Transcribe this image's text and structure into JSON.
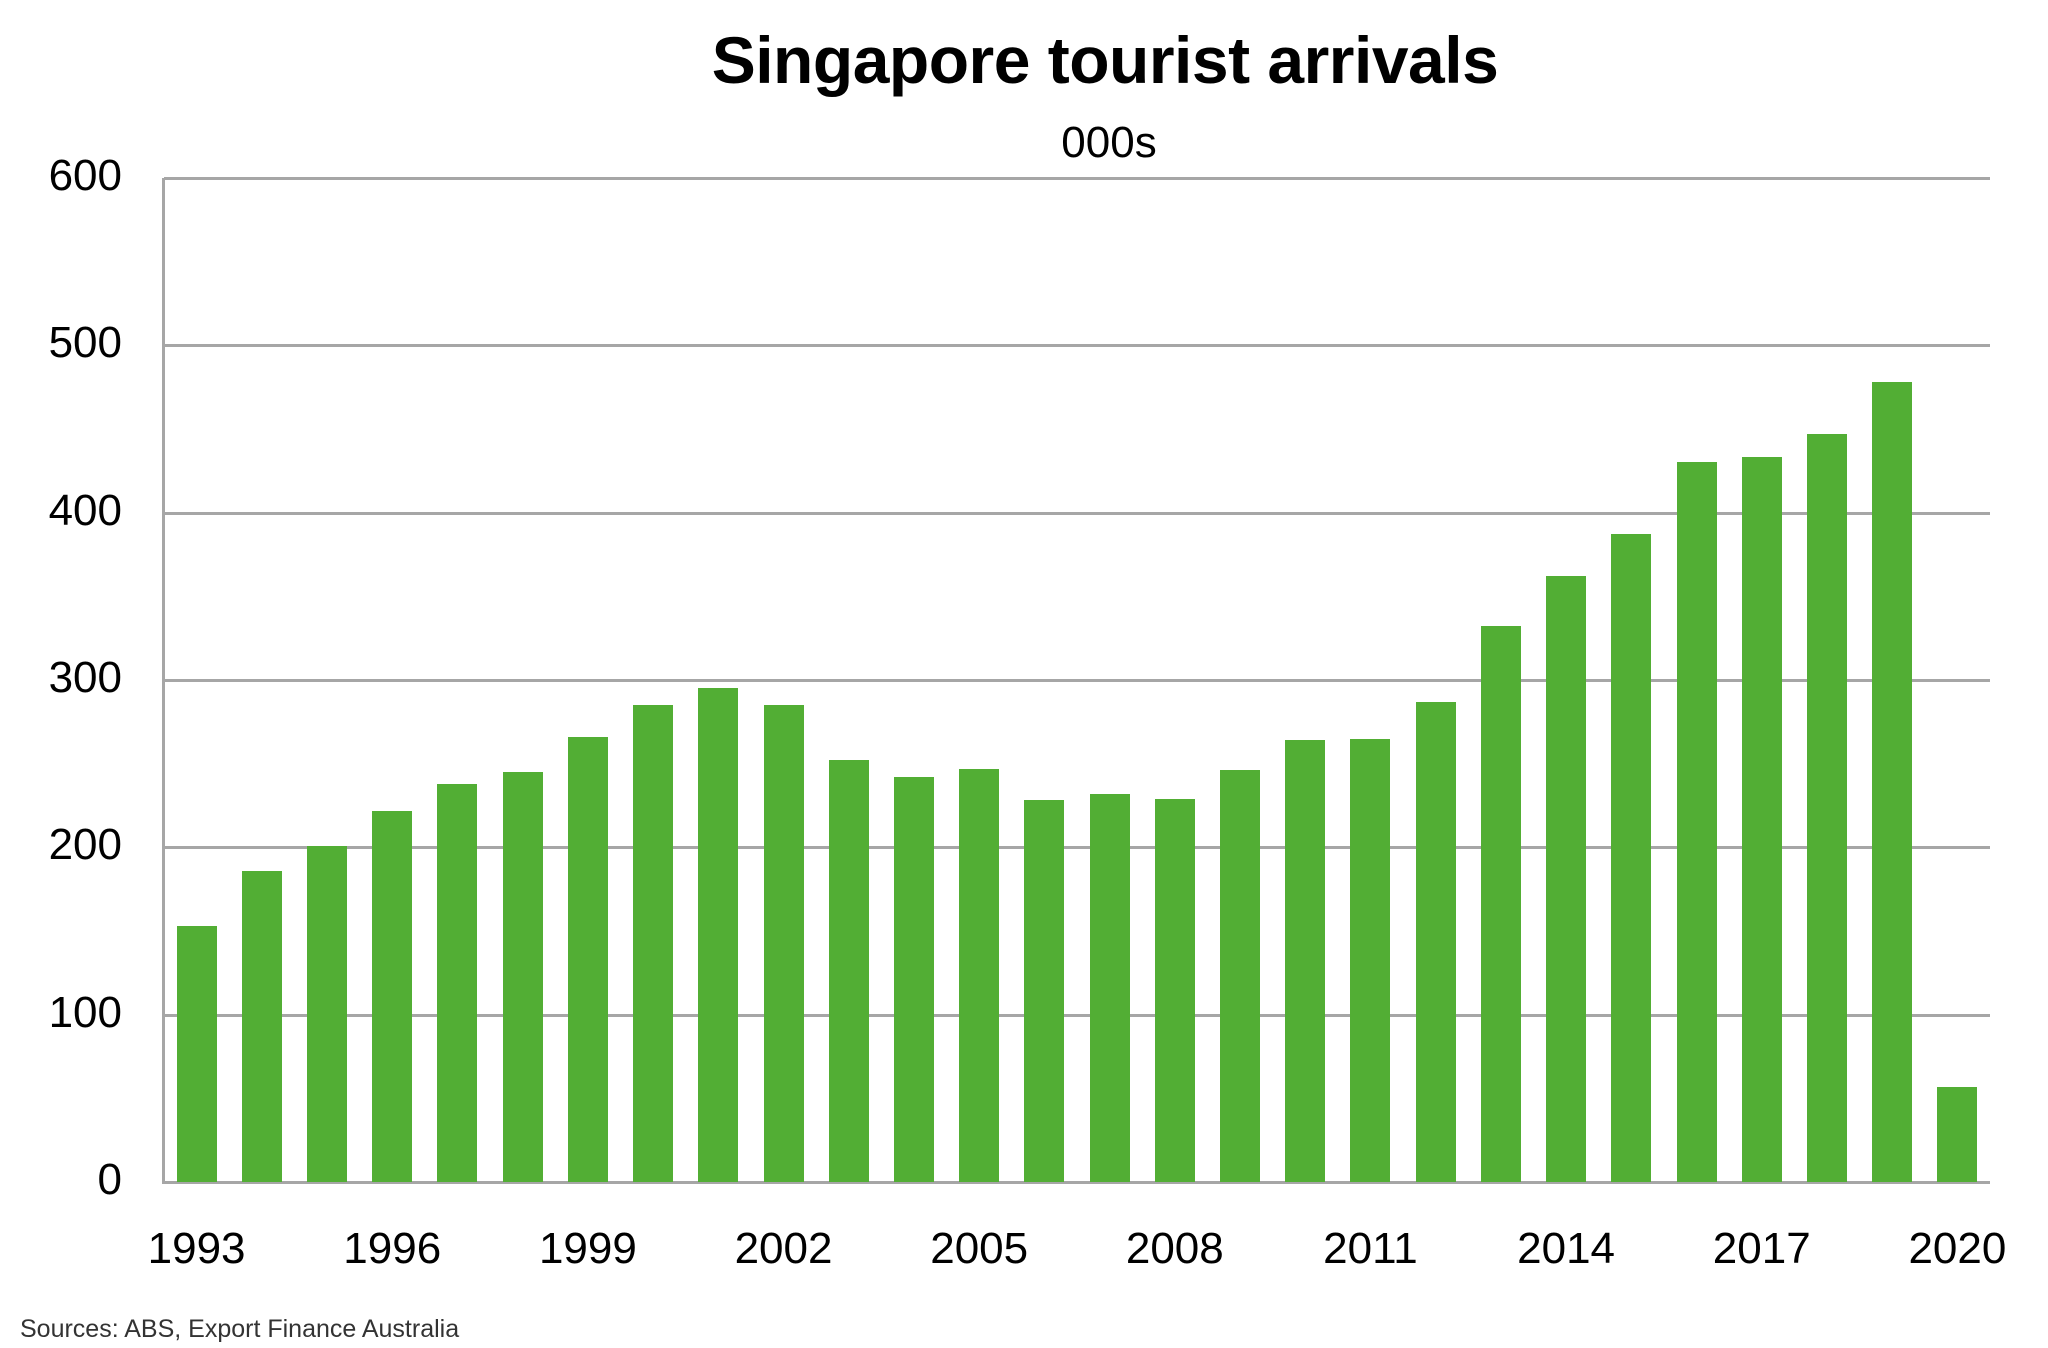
{
  "title": "Singapore tourist arrivals",
  "subtitle": "000s",
  "source": "Sources: ABS, Export Finance Australia",
  "colors": {
    "bar": "#52ae34",
    "grid": "#a6a6a6"
  },
  "chart_data": {
    "type": "bar",
    "title": "Singapore tourist arrivals",
    "subtitle": "000s",
    "xlabel": "",
    "ylabel": "000s",
    "ylim": [
      0,
      600
    ],
    "yticks": [
      0,
      100,
      200,
      300,
      400,
      500,
      600
    ],
    "xtick_labels": [
      "1993",
      "1996",
      "1999",
      "2002",
      "2005",
      "2008",
      "2011",
      "2014",
      "2017",
      "2020"
    ],
    "grid": true,
    "legend": null,
    "categories": [
      "1993",
      "1994",
      "1995",
      "1996",
      "1997",
      "1998",
      "1999",
      "2000",
      "2001",
      "2002",
      "2003",
      "2004",
      "2005",
      "2006",
      "2007",
      "2008",
      "2009",
      "2010",
      "2011",
      "2012",
      "2013",
      "2014",
      "2015",
      "2016",
      "2017",
      "2018",
      "2019",
      "2020"
    ],
    "values": [
      153,
      186,
      201,
      222,
      238,
      245,
      266,
      285,
      295,
      285,
      252,
      242,
      247,
      228,
      232,
      229,
      246,
      264,
      265,
      287,
      332,
      362,
      387,
      430,
      433,
      447,
      478,
      57
    ],
    "source": "Sources: ABS, Export Finance Australia"
  }
}
